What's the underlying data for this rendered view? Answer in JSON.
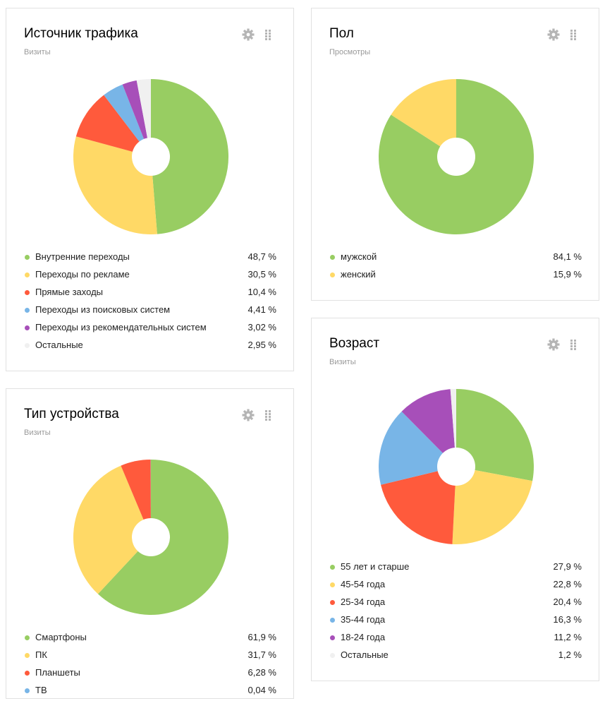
{
  "colors": {
    "green": "#98cd62",
    "yellow": "#ffd966",
    "red": "#ff5a3c",
    "blue": "#78b5e7",
    "purple": "#a74fb9",
    "gray": "#f0f0f0",
    "icon": "#b5b5b5"
  },
  "widgets": {
    "traffic": {
      "title": "Источник трафика",
      "subtitle": "Визиты"
    },
    "gender": {
      "title": "Пол",
      "subtitle": "Просмотры"
    },
    "device": {
      "title": "Тип устройства",
      "subtitle": "Визиты"
    },
    "age": {
      "title": "Возраст",
      "subtitle": "Визиты"
    }
  },
  "chart_data": [
    {
      "id": "traffic",
      "type": "pie",
      "title": "Источник трафика",
      "subtitle": "Визиты",
      "labels": [
        "Внутренние переходы",
        "Переходы по рекламе",
        "Прямые заходы",
        "Переходы из поисковых систем",
        "Переходы из рекомендательных систем",
        "Остальные"
      ],
      "values": [
        48.7,
        30.5,
        10.4,
        4.41,
        3.02,
        2.95
      ],
      "value_labels": [
        "48,7 %",
        "30,5 %",
        "10,4 %",
        "4,41 %",
        "3,02 %",
        "2,95 %"
      ],
      "colors": [
        "#98cd62",
        "#ffd966",
        "#ff5a3c",
        "#78b5e7",
        "#a74fb9",
        "#f0f0f0"
      ]
    },
    {
      "id": "gender",
      "type": "pie",
      "title": "Пол",
      "subtitle": "Просмотры",
      "labels": [
        "мужской",
        "женский"
      ],
      "values": [
        84.1,
        15.9
      ],
      "value_labels": [
        "84,1 %",
        "15,9 %"
      ],
      "colors": [
        "#98cd62",
        "#ffd966"
      ]
    },
    {
      "id": "device",
      "type": "pie",
      "title": "Тип устройства",
      "subtitle": "Визиты",
      "labels": [
        "Смартфоны",
        "ПК",
        "Планшеты",
        "ТВ"
      ],
      "values": [
        61.9,
        31.7,
        6.28,
        0.04
      ],
      "value_labels": [
        "61,9 %",
        "31,7 %",
        "6,28 %",
        "0,04 %"
      ],
      "colors": [
        "#98cd62",
        "#ffd966",
        "#ff5a3c",
        "#78b5e7"
      ]
    },
    {
      "id": "age",
      "type": "pie",
      "title": "Возраст",
      "subtitle": "Визиты",
      "labels": [
        "55 лет и старше",
        "45-54 года",
        "25-34 года",
        "35-44 года",
        "18-24 года",
        "Остальные"
      ],
      "values": [
        27.9,
        22.8,
        20.4,
        16.3,
        11.2,
        1.2
      ],
      "value_labels": [
        "27,9 %",
        "22,8 %",
        "20,4 %",
        "16,3 %",
        "11,2 %",
        "1,2 %"
      ],
      "colors": [
        "#98cd62",
        "#ffd966",
        "#ff5a3c",
        "#78b5e7",
        "#a74fb9",
        "#f0f0f0"
      ]
    }
  ]
}
